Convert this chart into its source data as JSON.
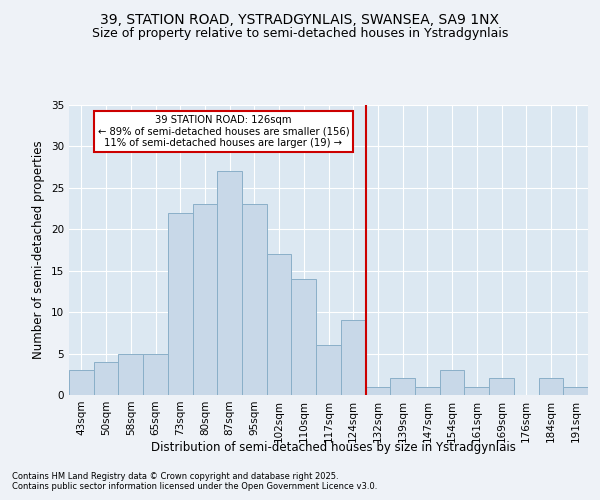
{
  "title_line1": "39, STATION ROAD, YSTRADGYNLAIS, SWANSEA, SA9 1NX",
  "title_line2": "Size of property relative to semi-detached houses in Ystradgynlais",
  "xlabel": "Distribution of semi-detached houses by size in Ystradgynlais",
  "ylabel": "Number of semi-detached properties",
  "footnote_line1": "Contains HM Land Registry data © Crown copyright and database right 2025.",
  "footnote_line2": "Contains public sector information licensed under the Open Government Licence v3.0.",
  "bar_labels": [
    "43sqm",
    "50sqm",
    "58sqm",
    "65sqm",
    "73sqm",
    "80sqm",
    "87sqm",
    "95sqm",
    "102sqm",
    "110sqm",
    "117sqm",
    "124sqm",
    "132sqm",
    "139sqm",
    "147sqm",
    "154sqm",
    "161sqm",
    "169sqm",
    "176sqm",
    "184sqm",
    "191sqm"
  ],
  "bar_values": [
    3,
    4,
    5,
    5,
    22,
    23,
    27,
    23,
    17,
    14,
    6,
    9,
    1,
    2,
    1,
    3,
    1,
    2,
    0,
    2,
    1
  ],
  "bar_color": "#c8d8e8",
  "bar_edgecolor": "#8aafc8",
  "vline_x": 11.5,
  "vline_color": "#cc0000",
  "annotation_text": "39 STATION ROAD: 126sqm\n← 89% of semi-detached houses are smaller (156)\n11% of semi-detached houses are larger (19) →",
  "annotation_box_color": "#cc0000",
  "ylim": [
    0,
    35
  ],
  "yticks": [
    0,
    5,
    10,
    15,
    20,
    25,
    30,
    35
  ],
  "background_color": "#eef2f7",
  "plot_bg_color": "#dce8f2",
  "grid_color": "#ffffff",
  "title_fontsize": 10,
  "subtitle_fontsize": 9,
  "axis_label_fontsize": 8.5,
  "tick_fontsize": 7.5,
  "footnote_fontsize": 6
}
